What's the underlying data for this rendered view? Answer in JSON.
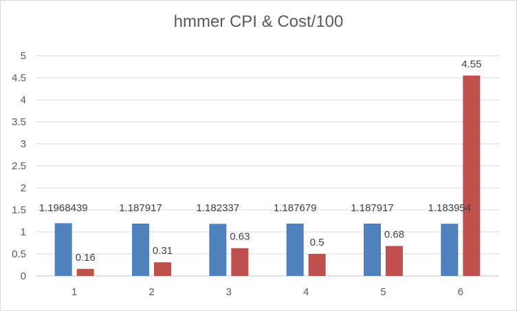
{
  "chart_data": {
    "type": "bar",
    "title": "hmmer CPI & Cost/100",
    "xlabel": "",
    "ylabel": "",
    "categories": [
      "1",
      "2",
      "3",
      "4",
      "5",
      "6"
    ],
    "series": [
      {
        "color": "#4f81bd",
        "values": [
          1.1968439,
          1.187917,
          1.182337,
          1.187679,
          1.187917,
          1.183954
        ],
        "labels": [
          "1.1968439",
          "1.187917",
          "1.182337",
          "1.187679",
          "1.187917",
          "1.183954"
        ]
      },
      {
        "color": "#c0504d",
        "values": [
          0.16,
          0.31,
          0.63,
          0.5,
          0.68,
          4.55
        ],
        "labels": [
          "0.16",
          "0.31",
          "0.63",
          "0.5",
          "0.68",
          "4.55"
        ]
      }
    ],
    "ylim": [
      0,
      5
    ],
    "yticks": [
      "0",
      "0.5",
      "1",
      "1.5",
      "2",
      "2.5",
      "3",
      "3.5",
      "4",
      "4.5",
      "5"
    ],
    "grid": true,
    "legend": "none"
  }
}
